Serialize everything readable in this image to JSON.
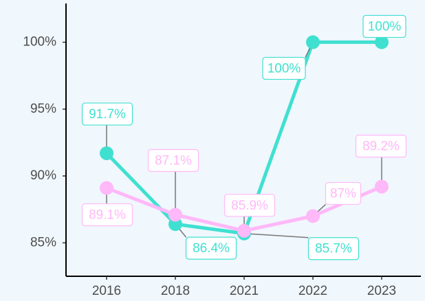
{
  "chart_data": {
    "type": "line",
    "categories": [
      "2016",
      "2018",
      "2021",
      "2022",
      "2023"
    ],
    "series": [
      {
        "color": "#40e0d0",
        "values": [
          91.7,
          86.4,
          85.7,
          100,
          100
        ],
        "value_labels": [
          "91.7%",
          "86.4%",
          "85.7%",
          "100%",
          "100%"
        ]
      },
      {
        "color": "#ffb8f8",
        "values": [
          89.1,
          87.1,
          85.9,
          87,
          89.2
        ],
        "value_labels": [
          "89.1%",
          "87.1%",
          "85.9%",
          "87%",
          "89.2%"
        ]
      }
    ],
    "ylim": [
      82.5,
      102.9
    ],
    "yticks": [
      {
        "value": 85,
        "label": "85%"
      },
      {
        "value": 90,
        "label": "90%"
      },
      {
        "value": 95,
        "label": "95%"
      },
      {
        "value": 100,
        "label": "100%"
      }
    ]
  }
}
